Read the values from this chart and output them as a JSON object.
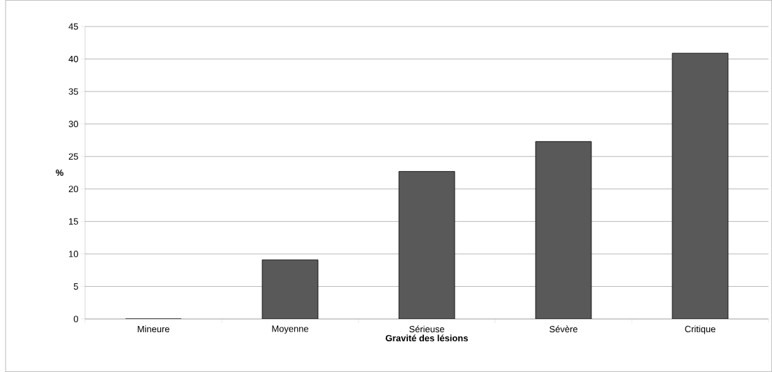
{
  "chart_data": {
    "type": "bar",
    "xlabel": "Gravité des lésions",
    "ylabel": "%",
    "categories": [
      "Mineure",
      "Moyenne",
      "Sérieuse",
      "Sévère",
      "Critique"
    ],
    "values": [
      0,
      9.1,
      22.7,
      27.3,
      40.9
    ],
    "color": "#595959",
    "ylim": [
      0,
      45
    ],
    "yticks": [
      0,
      5,
      10,
      15,
      20,
      25,
      30,
      35,
      40,
      45
    ],
    "grid": "y"
  }
}
